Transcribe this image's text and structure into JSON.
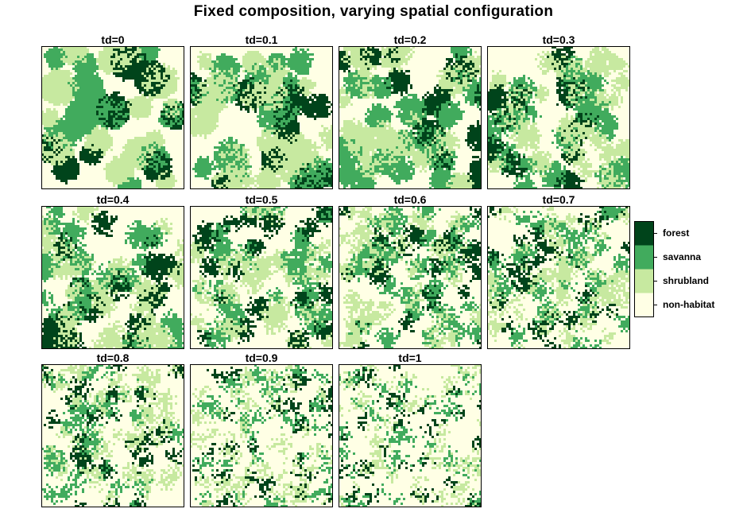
{
  "title": "Fixed composition, varying spatial configuration",
  "chart_data": {
    "type": "heatmap",
    "title": "Fixed composition, varying spatial configuration",
    "panels": [
      {
        "label": "td=0",
        "td": 0
      },
      {
        "label": "td=0.1",
        "td": 0.1
      },
      {
        "label": "td=0.2",
        "td": 0.2
      },
      {
        "label": "td=0.3",
        "td": 0.3
      },
      {
        "label": "td=0.4",
        "td": 0.4
      },
      {
        "label": "td=0.5",
        "td": 0.5
      },
      {
        "label": "td=0.6",
        "td": 0.6
      },
      {
        "label": "td=0.7",
        "td": 0.7
      },
      {
        "label": "td=0.8",
        "td": 0.8
      },
      {
        "label": "td=0.9",
        "td": 0.9
      },
      {
        "label": "td=1",
        "td": 1
      }
    ],
    "classes": [
      {
        "name": "forest",
        "color": "#00441b"
      },
      {
        "name": "savanna",
        "color": "#41ab5d"
      },
      {
        "name": "shrubland",
        "color": "#c7e9a0"
      },
      {
        "name": "non-habitat",
        "color": "#ffffe5"
      }
    ],
    "legend_position": "right"
  }
}
